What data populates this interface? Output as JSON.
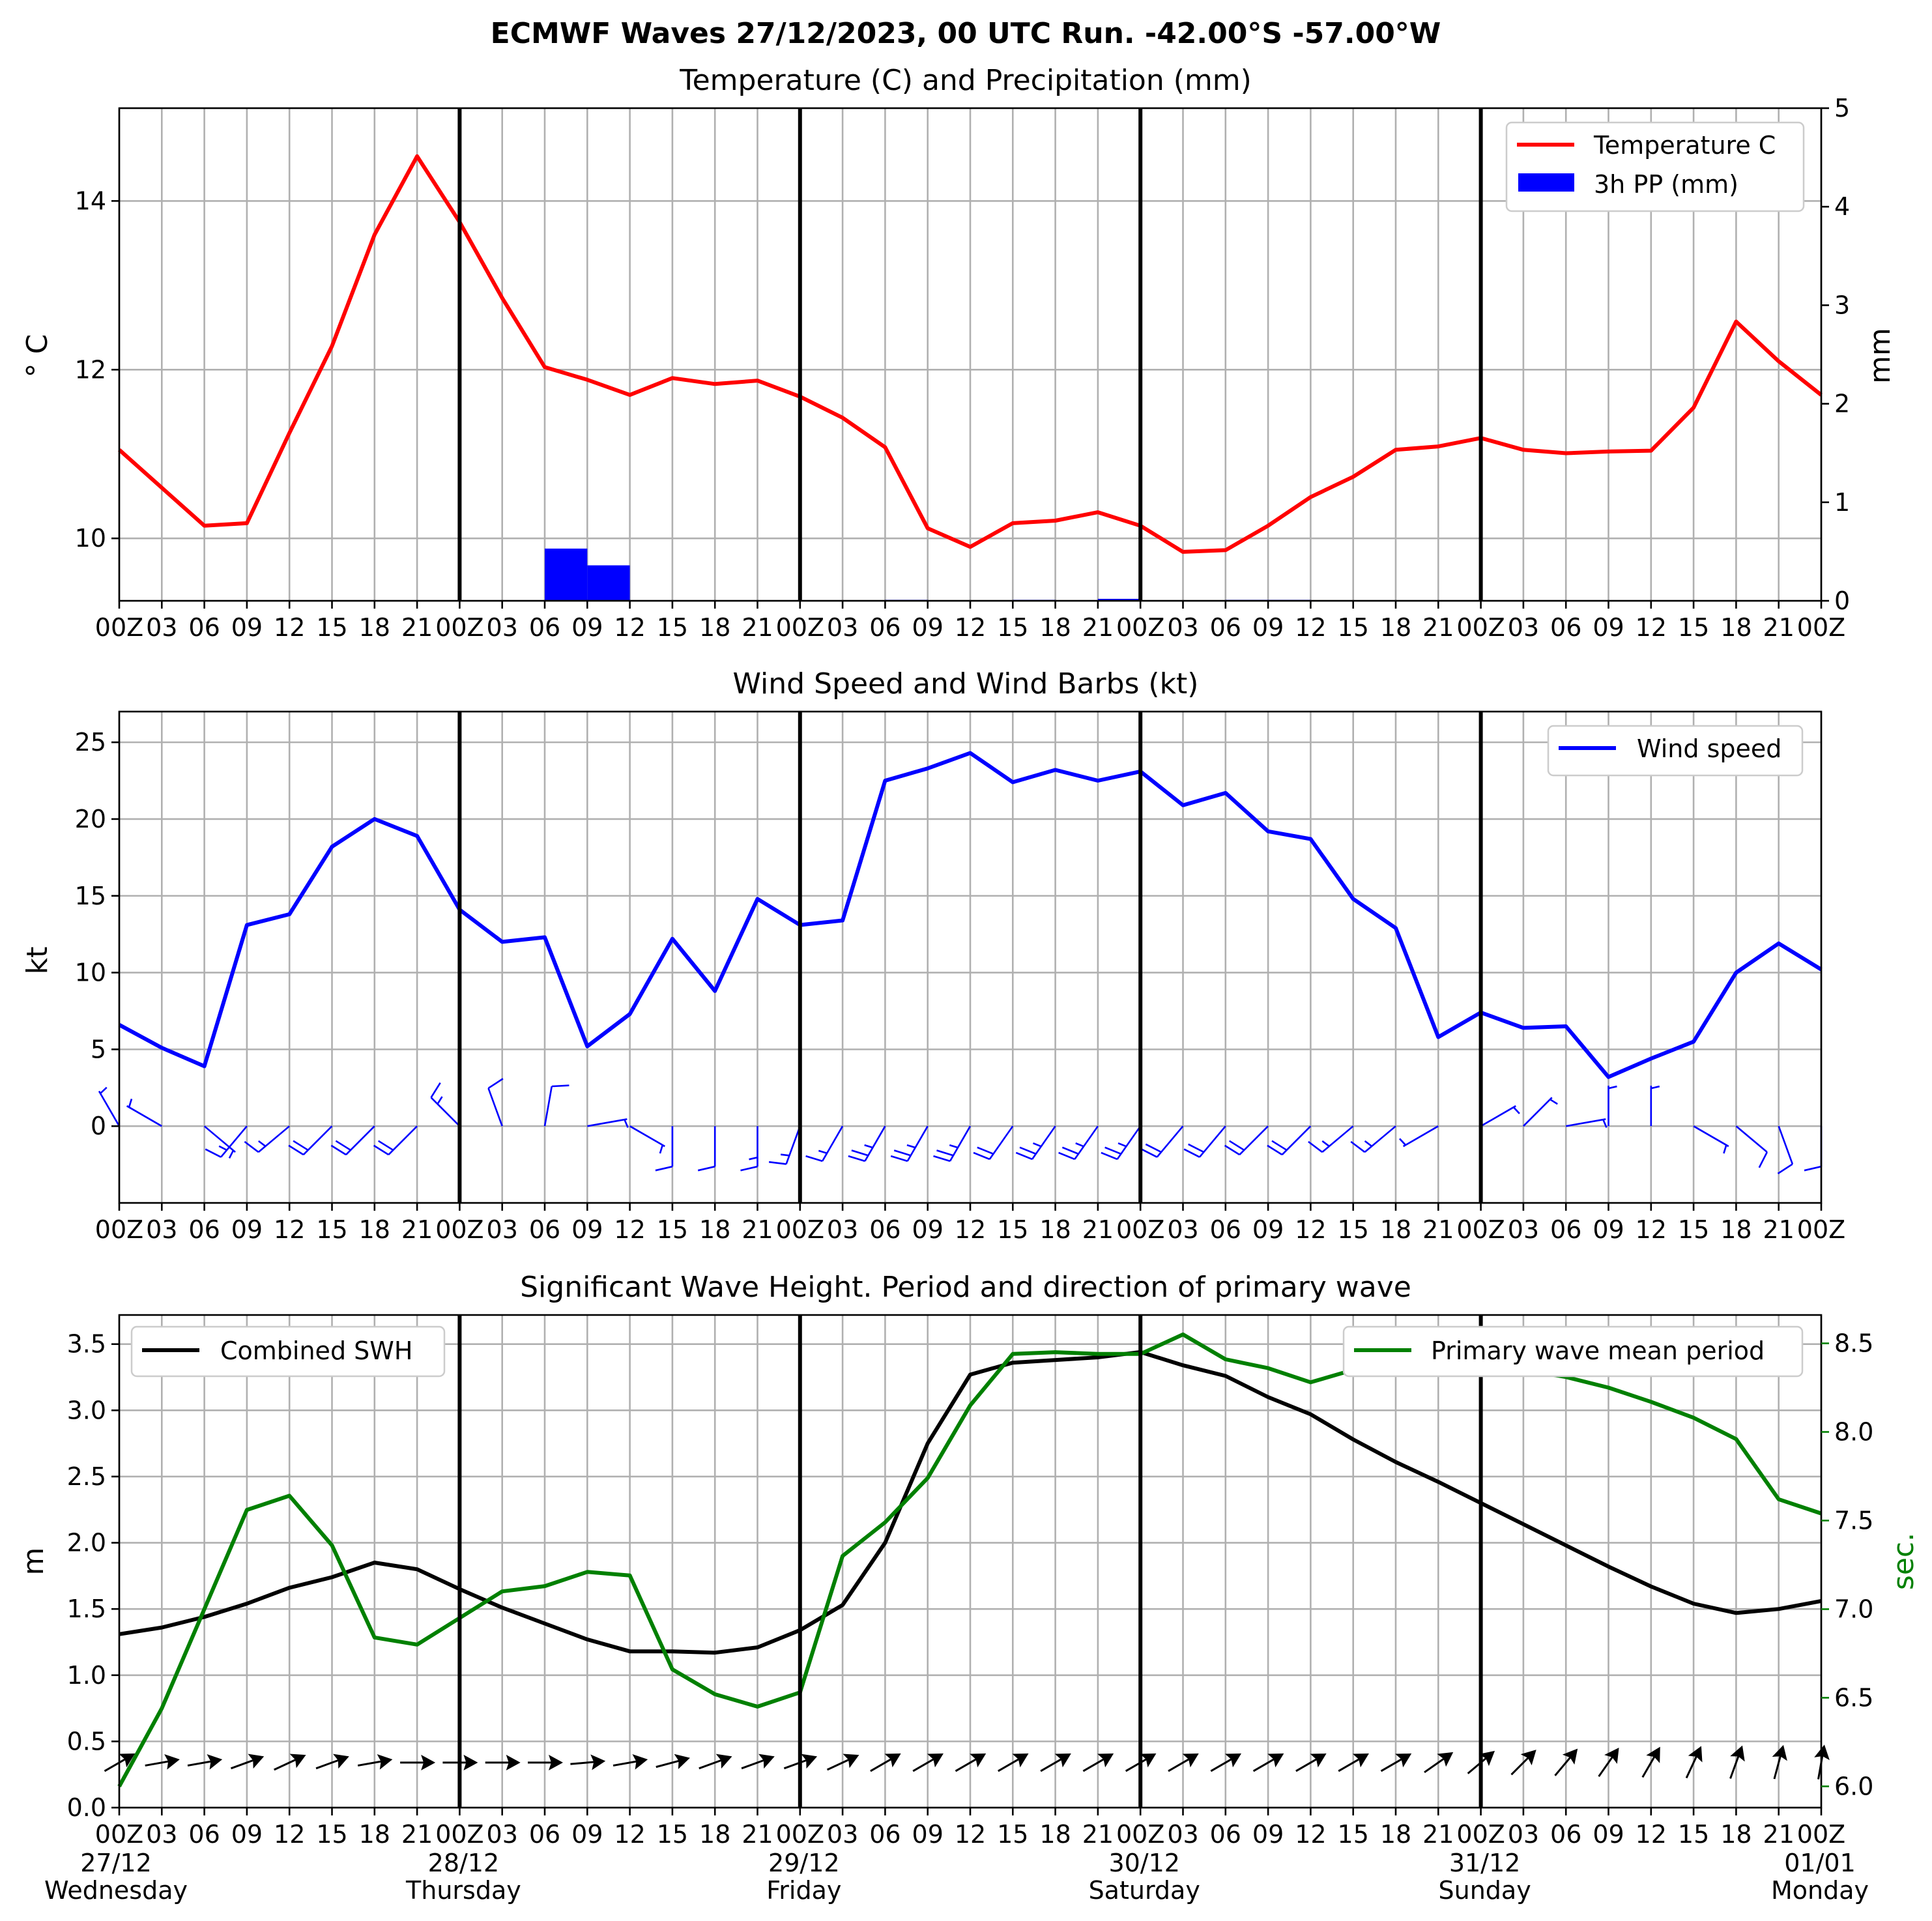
{
  "figure": {
    "title": "ECMWF Waves 27/12/2023, 00 UTC Run. -42.00°S -57.00°W"
  },
  "colors": {
    "temperature": "#ff0000",
    "precip": "#0000ff",
    "wind": "#0000ff",
    "swh": "#000000",
    "period": "#008000",
    "grid": "#b0b0b0"
  },
  "x_axis": {
    "hour_labels": [
      "00Z",
      "03",
      "06",
      "09",
      "12",
      "15",
      "18",
      "21",
      "00Z",
      "03",
      "06",
      "09",
      "12",
      "15",
      "18",
      "21",
      "00Z",
      "03",
      "06",
      "09",
      "12",
      "15",
      "18",
      "21",
      "00Z",
      "03",
      "06",
      "09",
      "12",
      "15",
      "18",
      "21",
      "00Z",
      "03",
      "06",
      "09",
      "12",
      "15",
      "18",
      "21",
      "00Z"
    ],
    "date_labels": [
      {
        "date": "27/12",
        "day": "Wednesday",
        "hour": 0
      },
      {
        "date": "28/12",
        "day": "Thursday",
        "hour": 24
      },
      {
        "date": "29/12",
        "day": "Friday",
        "hour": 48
      },
      {
        "date": "30/12",
        "day": "Saturday",
        "hour": 72
      },
      {
        "date": "31/12",
        "day": "Sunday",
        "hour": 96
      },
      {
        "date": "01/01",
        "day": "Monday",
        "hour": 120
      }
    ],
    "day_separators_hours": [
      24,
      48,
      72,
      96
    ]
  },
  "chart_data": [
    {
      "type": "line",
      "title": "Temperature (C) and Precipitation (mm)",
      "ylabel": "° C",
      "ylabel_right": "mm",
      "xlim_hours": [
        0,
        120
      ],
      "ylim": [
        9.26,
        15.1
      ],
      "yticks": [
        10,
        12,
        14
      ],
      "ylim_right": [
        0,
        5
      ],
      "yticks_right": [
        0,
        1,
        2,
        3,
        4,
        5
      ],
      "legend_position": "upper right",
      "x_hours": [
        0,
        3,
        6,
        9,
        12,
        15,
        18,
        21,
        24,
        27,
        30,
        33,
        36,
        39,
        42,
        45,
        48,
        51,
        54,
        57,
        60,
        63,
        66,
        69,
        72,
        75,
        78,
        81,
        84,
        87,
        90,
        93,
        96,
        99,
        102,
        105,
        108,
        111,
        114,
        117,
        120
      ],
      "series": [
        {
          "name": "Temperature C",
          "kind": "line",
          "axis": "left",
          "values": [
            11.05,
            10.6,
            10.15,
            10.18,
            11.25,
            12.28,
            13.6,
            14.53,
            13.75,
            12.85,
            12.03,
            11.88,
            11.7,
            11.9,
            11.83,
            11.87,
            11.68,
            11.43,
            11.08,
            10.12,
            9.9,
            10.18,
            10.21,
            10.31,
            10.15,
            9.84,
            9.86,
            10.15,
            10.49,
            10.73,
            11.05,
            11.09,
            11.19,
            11.05,
            11.01,
            11.03,
            11.04,
            11.55,
            12.57,
            12.1,
            11.7
          ]
        },
        {
          "name": "3h PP (mm)",
          "kind": "bar",
          "axis": "right",
          "bar_start_hours": [
            30,
            33,
            54,
            63,
            69,
            78,
            81
          ],
          "values": [
            0.53,
            0.36,
            0.01,
            0.01,
            0.02,
            0.01,
            0.01
          ]
        }
      ]
    },
    {
      "type": "line",
      "title": "Wind Speed and Wind Barbs (kt)",
      "ylabel": "kt",
      "xlim_hours": [
        0,
        120
      ],
      "ylim": [
        -5,
        27
      ],
      "yticks": [
        0,
        5,
        10,
        15,
        20,
        25
      ],
      "legend_position": "upper right",
      "x_hours": [
        0,
        3,
        6,
        9,
        12,
        15,
        18,
        21,
        24,
        27,
        30,
        33,
        36,
        39,
        42,
        45,
        48,
        51,
        54,
        57,
        60,
        63,
        66,
        69,
        72,
        75,
        78,
        81,
        84,
        87,
        90,
        93,
        96,
        99,
        102,
        105,
        108,
        111,
        114,
        117,
        120
      ],
      "series": [
        {
          "name": "Wind speed",
          "kind": "line",
          "values": [
            6.6,
            5.1,
            3.9,
            13.1,
            13.8,
            18.2,
            20.0,
            18.9,
            14.1,
            12.0,
            12.3,
            5.2,
            7.3,
            12.2,
            8.8,
            14.8,
            13.1,
            13.4,
            22.5,
            23.3,
            24.3,
            22.4,
            23.2,
            22.5,
            23.1,
            20.9,
            21.7,
            19.2,
            18.7,
            14.8,
            12.9,
            5.8,
            7.4,
            6.4,
            6.5,
            3.2,
            4.4,
            5.5,
            10.0,
            11.9,
            10.2
          ]
        }
      ],
      "barb_directions_deg": [
        330,
        300,
        130,
        220,
        230,
        225,
        225,
        225,
        315,
        340,
        10,
        80,
        120,
        180,
        180,
        180,
        200,
        210,
        210,
        210,
        210,
        215,
        215,
        215,
        215,
        220,
        220,
        225,
        225,
        230,
        230,
        240,
        60,
        45,
        80,
        0,
        0,
        120,
        130,
        160,
        180
      ]
    },
    {
      "type": "line",
      "title": "Significant Wave Height. Period and direction of primary wave",
      "ylabel": "m",
      "ylabel_right": "sec.",
      "xlim_hours": [
        0,
        120
      ],
      "ylim": [
        0,
        3.72
      ],
      "yticks": [
        0.0,
        0.5,
        1.0,
        1.5,
        2.0,
        2.5,
        3.0,
        3.5
      ],
      "ylim_right": [
        5.88,
        8.66
      ],
      "yticks_right": [
        6.0,
        6.5,
        7.0,
        7.5,
        8.0,
        8.5
      ],
      "x_hours": [
        0,
        3,
        6,
        9,
        12,
        15,
        18,
        21,
        24,
        27,
        30,
        33,
        36,
        39,
        42,
        45,
        48,
        51,
        54,
        57,
        60,
        63,
        66,
        69,
        72,
        75,
        78,
        81,
        84,
        87,
        90,
        93,
        96,
        99,
        102,
        105,
        108,
        111,
        114,
        117,
        120
      ],
      "series": [
        {
          "name": "Combined SWH",
          "kind": "line",
          "axis": "left",
          "legend_position": "upper left",
          "values": [
            1.31,
            1.36,
            1.44,
            1.54,
            1.66,
            1.74,
            1.85,
            1.8,
            1.65,
            1.51,
            1.39,
            1.27,
            1.18,
            1.18,
            1.17,
            1.21,
            1.34,
            1.53,
            2.0,
            2.75,
            3.27,
            3.36,
            3.38,
            3.4,
            3.44,
            3.34,
            3.26,
            3.1,
            2.97,
            2.78,
            2.61,
            2.46,
            2.3,
            2.14,
            1.98,
            1.82,
            1.67,
            1.54,
            1.47,
            1.5,
            1.56
          ]
        },
        {
          "name": "Primary wave mean period",
          "kind": "line",
          "axis": "right",
          "legend_position": "upper right",
          "values": [
            6.0,
            6.44,
            7.0,
            7.56,
            7.64,
            7.36,
            6.84,
            6.8,
            6.95,
            7.1,
            7.13,
            7.21,
            7.19,
            6.66,
            6.52,
            6.45,
            6.53,
            7.3,
            7.49,
            7.74,
            8.15,
            8.44,
            8.45,
            8.44,
            8.44,
            8.55,
            8.41,
            8.36,
            8.28,
            8.35,
            8.37,
            8.4,
            8.38,
            8.35,
            8.31,
            8.25,
            8.17,
            8.08,
            7.96,
            7.62,
            7.54
          ]
        }
      ],
      "arrow_directions_deg": [
        60,
        80,
        80,
        70,
        65,
        70,
        80,
        90,
        90,
        90,
        90,
        85,
        80,
        75,
        70,
        70,
        70,
        65,
        60,
        60,
        60,
        60,
        60,
        60,
        60,
        60,
        60,
        60,
        60,
        60,
        60,
        55,
        50,
        45,
        40,
        35,
        30,
        25,
        20,
        15,
        10
      ]
    }
  ]
}
